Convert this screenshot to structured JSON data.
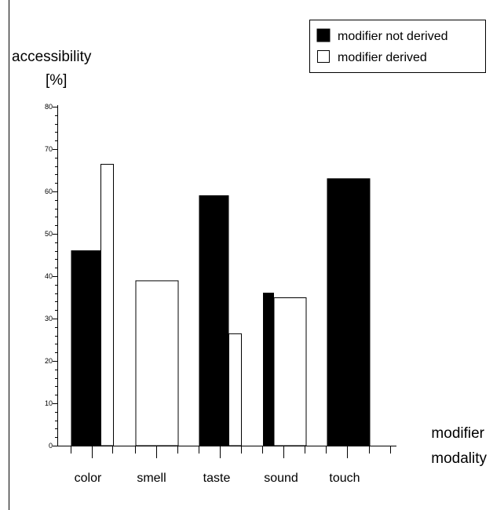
{
  "chart_data": {
    "type": "bar",
    "ylabel_line1": "accessibility",
    "ylabel_line2": "[%]",
    "xlabel_line1": "modifier",
    "xlabel_line2": "modality",
    "categories": [
      "color",
      "smell",
      "taste",
      "sound",
      "touch"
    ],
    "series": [
      {
        "name": "modifier not derived",
        "values": [
          46,
          0,
          59,
          36,
          63
        ],
        "color": "#000000"
      },
      {
        "name": "modifier derived",
        "values": [
          66.5,
          39,
          26.5,
          35,
          0
        ],
        "color": "#ffffff"
      }
    ],
    "ylim": [
      0,
      80
    ],
    "yticks": [
      "0",
      "10",
      "20",
      "30",
      "40",
      "50",
      "60",
      "70",
      "80"
    ],
    "grid": false,
    "legend_position": "top-right"
  }
}
